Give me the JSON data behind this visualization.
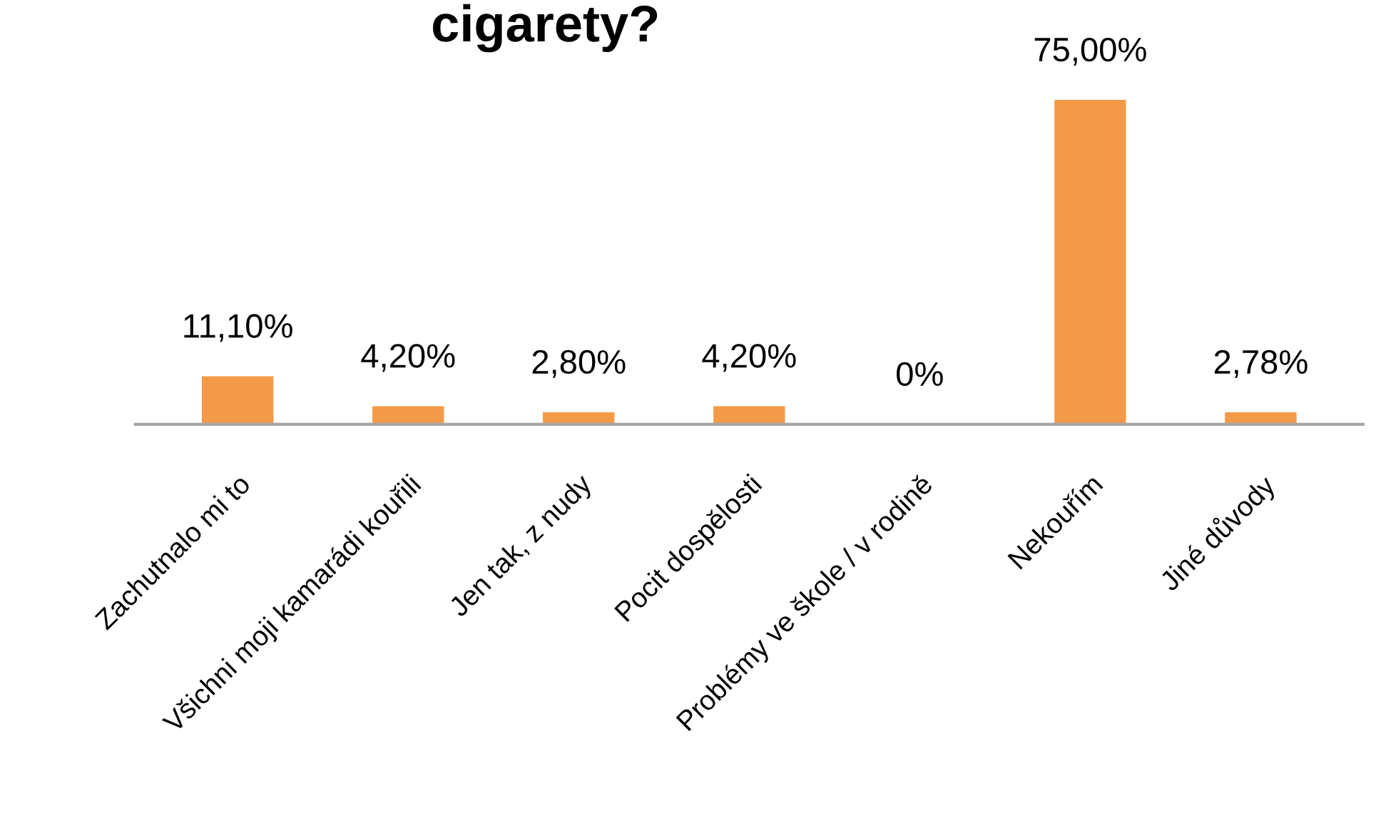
{
  "chart_data": {
    "type": "bar",
    "title": "cigarety?",
    "categories": [
      "Zachutnalo mi to",
      "Všichni moji kamarádi kouřili",
      "Jen tak, z nudy",
      "Pocit dospělosti",
      "Problémy ve škole / v rodině",
      "Nekouřím",
      "Jiné důvody"
    ],
    "values": [
      11.1,
      4.2,
      2.8,
      4.2,
      0,
      75,
      2.78
    ],
    "value_labels": [
      "11,10%",
      "4,20%",
      "2,80%",
      "4,20%",
      "0%",
      "75,00%",
      "2,78%"
    ],
    "color": "#f39a48",
    "tick_labels": "x"
  }
}
